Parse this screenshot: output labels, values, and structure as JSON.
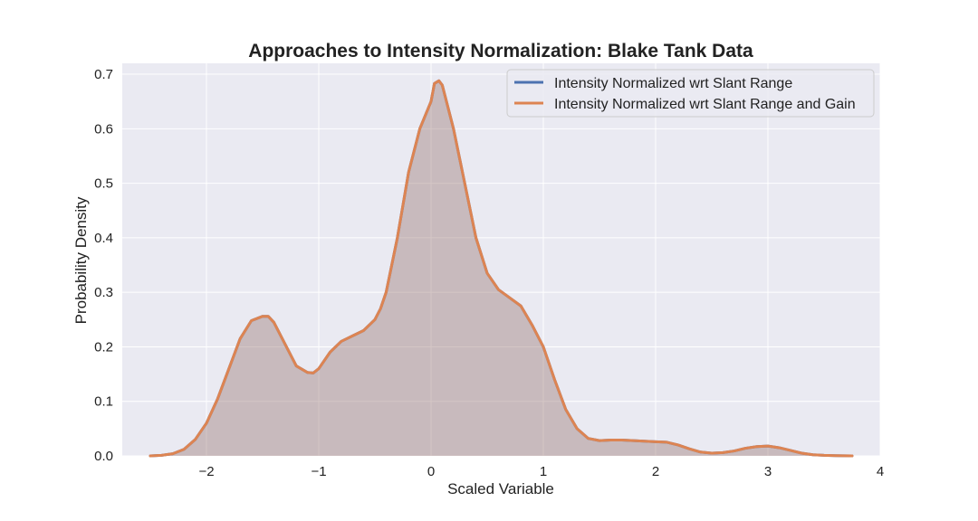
{
  "chart_data": {
    "type": "area",
    "title": "Approaches to Intensity Normalization: Blake Tank Data",
    "xlabel": "Scaled Variable",
    "ylabel": "Probability Density",
    "xlim": [
      -2.75,
      4.0
    ],
    "ylim": [
      0.0,
      0.72
    ],
    "xticks": [
      -2,
      -1,
      0,
      1,
      2,
      3,
      4
    ],
    "xtick_labels": [
      "−2",
      "−1",
      "0",
      "1",
      "2",
      "3",
      "4"
    ],
    "yticks": [
      0.0,
      0.1,
      0.2,
      0.3,
      0.4,
      0.5,
      0.6,
      0.7
    ],
    "ytick_labels": [
      "0.0",
      "0.1",
      "0.2",
      "0.3",
      "0.4",
      "0.5",
      "0.6",
      "0.7"
    ],
    "grid": true,
    "legend_position": "top-right",
    "background_color": "#eaeaf2",
    "grid_color": "#ffffff",
    "fill_color": "#b99a9e",
    "x": [
      -2.5,
      -2.4,
      -2.3,
      -2.2,
      -2.1,
      -2.0,
      -1.9,
      -1.8,
      -1.7,
      -1.6,
      -1.5,
      -1.45,
      -1.4,
      -1.3,
      -1.2,
      -1.1,
      -1.05,
      -1.0,
      -0.9,
      -0.8,
      -0.7,
      -0.6,
      -0.5,
      -0.45,
      -0.4,
      -0.3,
      -0.2,
      -0.1,
      0.0,
      0.03,
      0.07,
      0.1,
      0.2,
      0.3,
      0.4,
      0.5,
      0.6,
      0.7,
      0.8,
      0.9,
      1.0,
      1.1,
      1.2,
      1.3,
      1.4,
      1.5,
      1.6,
      1.7,
      1.8,
      1.9,
      2.0,
      2.1,
      2.2,
      2.3,
      2.4,
      2.5,
      2.6,
      2.7,
      2.8,
      2.9,
      3.0,
      3.1,
      3.2,
      3.3,
      3.4,
      3.5,
      3.6,
      3.75
    ],
    "series": [
      {
        "name": "Intensity Normalized wrt Slant Range",
        "color": "#4c72b0",
        "values": [
          0.0,
          0.001,
          0.004,
          0.012,
          0.03,
          0.06,
          0.105,
          0.16,
          0.215,
          0.248,
          0.256,
          0.256,
          0.245,
          0.205,
          0.165,
          0.153,
          0.152,
          0.16,
          0.19,
          0.21,
          0.22,
          0.23,
          0.25,
          0.27,
          0.3,
          0.4,
          0.52,
          0.6,
          0.65,
          0.683,
          0.688,
          0.68,
          0.6,
          0.5,
          0.4,
          0.335,
          0.305,
          0.29,
          0.275,
          0.24,
          0.2,
          0.14,
          0.085,
          0.05,
          0.032,
          0.028,
          0.029,
          0.029,
          0.028,
          0.027,
          0.026,
          0.025,
          0.02,
          0.013,
          0.007,
          0.005,
          0.006,
          0.009,
          0.014,
          0.017,
          0.018,
          0.015,
          0.01,
          0.005,
          0.002,
          0.001,
          0.0005,
          0.0
        ]
      },
      {
        "name": "Intensity Normalized wrt Slant Range and Gain",
        "color": "#dd8452",
        "values": [
          0.0,
          0.001,
          0.004,
          0.012,
          0.03,
          0.06,
          0.105,
          0.16,
          0.215,
          0.248,
          0.256,
          0.256,
          0.245,
          0.205,
          0.165,
          0.153,
          0.152,
          0.16,
          0.19,
          0.21,
          0.22,
          0.23,
          0.25,
          0.27,
          0.3,
          0.4,
          0.52,
          0.6,
          0.65,
          0.683,
          0.688,
          0.68,
          0.6,
          0.5,
          0.4,
          0.335,
          0.305,
          0.29,
          0.275,
          0.24,
          0.2,
          0.14,
          0.085,
          0.05,
          0.032,
          0.028,
          0.029,
          0.029,
          0.028,
          0.027,
          0.026,
          0.025,
          0.02,
          0.013,
          0.007,
          0.005,
          0.006,
          0.009,
          0.014,
          0.017,
          0.018,
          0.015,
          0.01,
          0.005,
          0.002,
          0.001,
          0.0005,
          0.0
        ]
      }
    ]
  }
}
